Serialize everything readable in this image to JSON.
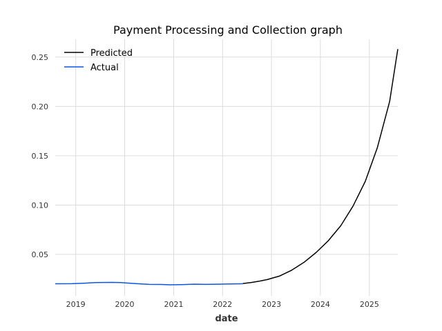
{
  "chart_data": {
    "type": "line",
    "title": "Payment Processing and Collection graph",
    "xlabel": "date",
    "ylabel": "",
    "xlim": [
      "2018-08-01",
      "2025-08-01"
    ],
    "ylim": [
      0.008,
      0.268
    ],
    "x_ticks": [
      "2019",
      "2020",
      "2021",
      "2022",
      "2023",
      "2024",
      "2025"
    ],
    "y_ticks": [
      "0.05",
      "0.10",
      "0.15",
      "0.20",
      "0.25"
    ],
    "grid": true,
    "legend_position": "top-left",
    "series": [
      {
        "name": "Predicted",
        "color": "#000000",
        "points": [
          [
            "2022-06-01",
            0.0205
          ],
          [
            "2022-08-01",
            0.0215
          ],
          [
            "2022-10-01",
            0.0228
          ],
          [
            "2022-12-01",
            0.0245
          ],
          [
            "2023-03-01",
            0.028
          ],
          [
            "2023-06-01",
            0.034
          ],
          [
            "2023-09-01",
            0.042
          ],
          [
            "2023-12-01",
            0.052
          ],
          [
            "2024-03-01",
            0.064
          ],
          [
            "2024-06-01",
            0.079
          ],
          [
            "2024-09-01",
            0.099
          ],
          [
            "2024-12-01",
            0.124
          ],
          [
            "2025-03-01",
            0.158
          ],
          [
            "2025-06-01",
            0.205
          ],
          [
            "2025-08-01",
            0.258
          ]
        ]
      },
      {
        "name": "Actual",
        "color": "#0a55e6",
        "points": [
          [
            "2018-08-01",
            0.0202
          ],
          [
            "2018-12-01",
            0.0203
          ],
          [
            "2019-03-01",
            0.0208
          ],
          [
            "2019-06-01",
            0.0214
          ],
          [
            "2019-10-01",
            0.0216
          ],
          [
            "2019-12-01",
            0.0214
          ],
          [
            "2020-03-01",
            0.0206
          ],
          [
            "2020-07-01",
            0.0196
          ],
          [
            "2020-10-01",
            0.0195
          ],
          [
            "2020-12-01",
            0.0192
          ],
          [
            "2021-03-01",
            0.0194
          ],
          [
            "2021-06-01",
            0.0198
          ],
          [
            "2021-09-01",
            0.0196
          ],
          [
            "2021-12-01",
            0.0198
          ],
          [
            "2022-03-01",
            0.02
          ],
          [
            "2022-06-01",
            0.0202
          ]
        ]
      }
    ]
  }
}
